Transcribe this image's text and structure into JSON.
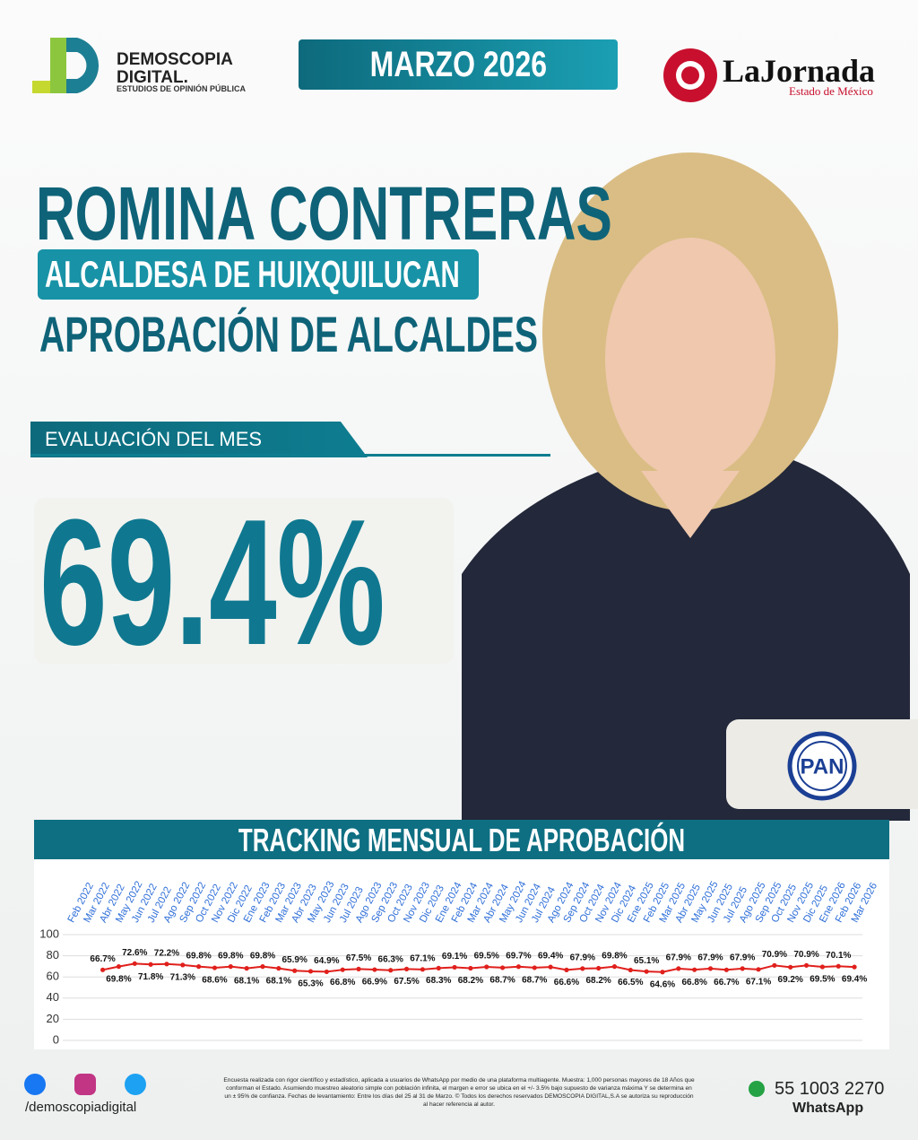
{
  "header": {
    "brand": "DEMOSCOPIA",
    "brand2": "DIGITAL.",
    "brand_sub": "ESTUDIOS DE OPINIÓN PÚBLICA",
    "date": "MARZO 2026",
    "paper": "LaJornada",
    "paper_sub": "Estado de México"
  },
  "headline": {
    "name": "ROMINA CONTRERAS",
    "role": "ALCALDESA DE HUIXQUILUCAN",
    "topic": "APROBACIÓN DE ALCALDES",
    "eval_label": "EVALUACIÓN DEL MES",
    "score": "69.4%",
    "party": "PAN"
  },
  "chart_data": {
    "type": "line",
    "title": "TRACKING MENSUAL DE APROBACIÓN",
    "categories": [
      "Feb 2022",
      "Mar 2022",
      "Abr 2022",
      "May 2022",
      "Jun 2022",
      "Jul 2022",
      "Ago 2022",
      "Sep 2022",
      "Oct 2022",
      "Nov 2022",
      "Dic 2022",
      "Ene 2023",
      "Feb 2023",
      "Mar 2023",
      "Abr 2023",
      "May 2023",
      "Jun 2023",
      "Jul 2023",
      "Ago 2023",
      "Sep 2023",
      "Oct 2023",
      "Nov 2023",
      "Dic 2023",
      "Ene 2024",
      "Feb 2024",
      "Mar 2024",
      "Abr 2024",
      "May 2024",
      "Jun 2024",
      "Jul 2024",
      "Ago 2024",
      "Sep 2024",
      "Oct 2024",
      "Nov 2024",
      "Dic 2024",
      "Ene 2025",
      "Feb 2025",
      "Mar 2025",
      "Abr 2025",
      "May 2025",
      "Jun 2025",
      "Jul 2025",
      "Ago 2025",
      "Sep 2025",
      "Oct 2025",
      "Nov 2025",
      "Dic 2025",
      "Ene 2026",
      "Feb 2026",
      "Mar 2026"
    ],
    "values": [
      null,
      null,
      66.7,
      69.8,
      72.6,
      71.8,
      72.2,
      71.3,
      69.8,
      68.6,
      69.8,
      68.1,
      69.8,
      68.1,
      65.9,
      65.3,
      64.9,
      66.8,
      67.5,
      66.9,
      66.3,
      67.5,
      67.1,
      68.3,
      69.1,
      68.2,
      69.5,
      68.7,
      69.7,
      68.7,
      69.4,
      66.6,
      67.9,
      68.2,
      69.8,
      66.5,
      65.1,
      64.6,
      67.9,
      66.8,
      67.9,
      66.7,
      67.9,
      67.1,
      70.9,
      69.2,
      70.9,
      69.5,
      70.1,
      69.4
    ],
    "value_labels": [
      null,
      null,
      "66.7%",
      "69.8%",
      "72.6%",
      "71.8%",
      "72.2%",
      "71.3%",
      "69.8%",
      "68.6%",
      "69.8%",
      "68.1%",
      "69.8%",
      "68.1%",
      "65.9%",
      "65.3%",
      "64.9%",
      "66.8%",
      "67.5%",
      "66.9%",
      "66.3%",
      "67.5%",
      "67.1%",
      "68.3%",
      "69.1%",
      "68.2%",
      "69.5%",
      "68.7%",
      "69.7%",
      "68.7%",
      "69.4%",
      "66.6%",
      "67.9%",
      "68.2%",
      "69.8%",
      "66.5%",
      "65.1%",
      "64.6%",
      "67.9%",
      "66.8%",
      "67.9%",
      "66.7%",
      "67.9%",
      "67.1%",
      "70.9%",
      "69.2%",
      "70.9%",
      "69.5%",
      "70.1%",
      "69.4%"
    ],
    "color": "#e0201c",
    "ylim": [
      0,
      100
    ],
    "yticks": [
      0,
      20,
      40,
      60,
      80,
      100
    ],
    "grid": true
  },
  "footer": {
    "social": "/demoscopiadigital",
    "disclaimer": "Encuesta realizada con rigor científico y estadístico, aplicada a usuarios de WhatsApp por medio de una plataforma multiagente. Muestra: 1,000 personas mayores de 18 Años que conforman el Estado. Asumiendo muestreo aleatorio simple con población infinita, el margen e error se ubica en el +/- 3.5% bajo supuesto de varianza máxima Y se determina en un ± 95% de confianza. Fechas de levantamiento: Entre los días del 25 al 31 de Marzo. © Todos los derechos reservados DEMOSCOPIA DIGITAL,S.A se autoriza su reproducción al hacer referencia al autor.",
    "phone": "55 1003 2270",
    "phone_label": "WhatsApp"
  }
}
